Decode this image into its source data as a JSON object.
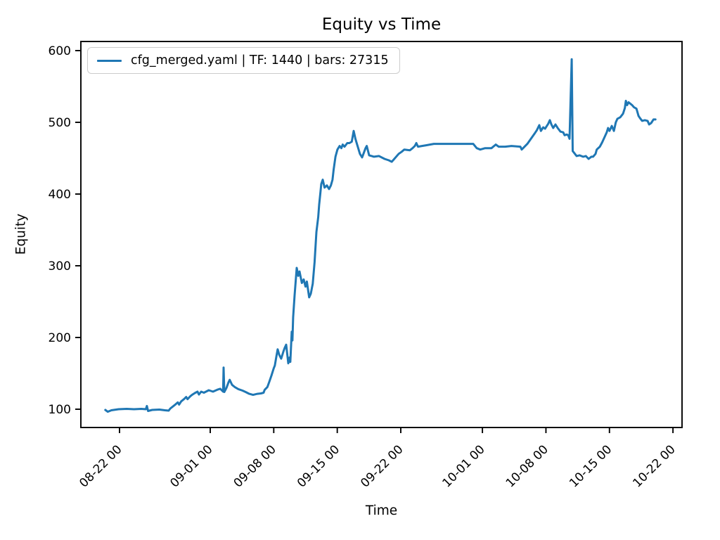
{
  "chart_data": {
    "type": "line",
    "title": "Equity vs Time",
    "xlabel": "Time",
    "ylabel": "Equity",
    "legend_position": "upper left",
    "line_color": "#1f77b4",
    "legend_border_color": "#cccccc",
    "y_ticks": [
      100,
      200,
      300,
      400,
      500,
      600
    ],
    "y_range": [
      74.5,
      612.7
    ],
    "x_tick_labels": [
      "08-22 00",
      "09-01 00",
      "09-08 00",
      "09-15 00",
      "09-22 00",
      "10-01 00",
      "10-08 00",
      "10-15 00",
      "10-22 00"
    ],
    "x_tick_days": [
      2,
      12,
      19,
      26,
      33,
      42,
      49,
      56,
      63
    ],
    "x_days_origin_label": "days since 08-20 00",
    "x_range_days": [
      -2.26,
      64.0
    ],
    "series": [
      {
        "name": "cfg_merged.yaml | TF: 1440 | bars: 27315",
        "points": [
          [
            0.44,
            99
          ],
          [
            0.7,
            96.5
          ],
          [
            1.1,
            98.5
          ],
          [
            1.9,
            100
          ],
          [
            2.8,
            100.5
          ],
          [
            3.6,
            100
          ],
          [
            4.4,
            100.5
          ],
          [
            4.9,
            100
          ],
          [
            5.02,
            104.5
          ],
          [
            5.15,
            97.5
          ],
          [
            5.6,
            99
          ],
          [
            6.4,
            99.5
          ],
          [
            7.0,
            98.5
          ],
          [
            7.42,
            98
          ],
          [
            7.6,
            101
          ],
          [
            7.9,
            104
          ],
          [
            8.2,
            107
          ],
          [
            8.43,
            109.5
          ],
          [
            8.57,
            106.5
          ],
          [
            8.8,
            111
          ],
          [
            9.1,
            114
          ],
          [
            9.35,
            117
          ],
          [
            9.5,
            114
          ],
          [
            9.8,
            118
          ],
          [
            10.05,
            120.5
          ],
          [
            10.3,
            122.5
          ],
          [
            10.6,
            124.5
          ],
          [
            10.75,
            120.5
          ],
          [
            11.0,
            124.5
          ],
          [
            11.3,
            123
          ],
          [
            11.84,
            126.5
          ],
          [
            12.3,
            124.5
          ],
          [
            12.85,
            127.5
          ],
          [
            13.1,
            128.5
          ],
          [
            13.3,
            126
          ],
          [
            13.42,
            124.5
          ],
          [
            13.47,
            158
          ],
          [
            13.55,
            124
          ],
          [
            13.8,
            130
          ],
          [
            14.0,
            137
          ],
          [
            14.15,
            141
          ],
          [
            14.4,
            134
          ],
          [
            14.7,
            131
          ],
          [
            15.1,
            128
          ],
          [
            15.56,
            126
          ],
          [
            15.9,
            124
          ],
          [
            16.3,
            121.5
          ],
          [
            16.72,
            120
          ],
          [
            17.2,
            121.5
          ],
          [
            17.6,
            122
          ],
          [
            17.88,
            123
          ],
          [
            18.0,
            127
          ],
          [
            18.3,
            131
          ],
          [
            18.5,
            138
          ],
          [
            18.75,
            147
          ],
          [
            19.0,
            157
          ],
          [
            19.12,
            161
          ],
          [
            19.27,
            172
          ],
          [
            19.43,
            183.5
          ],
          [
            19.6,
            176
          ],
          [
            19.82,
            170.5
          ],
          [
            20.05,
            180
          ],
          [
            20.21,
            185.5
          ],
          [
            20.37,
            190
          ],
          [
            20.6,
            164
          ],
          [
            20.75,
            172
          ],
          [
            20.83,
            166
          ],
          [
            20.98,
            208
          ],
          [
            21.06,
            196
          ],
          [
            21.14,
            228
          ],
          [
            21.3,
            259
          ],
          [
            21.53,
            297
          ],
          [
            21.7,
            286
          ],
          [
            21.84,
            292
          ],
          [
            22.1,
            276
          ],
          [
            22.3,
            281
          ],
          [
            22.5,
            271
          ],
          [
            22.65,
            278
          ],
          [
            22.9,
            256
          ],
          [
            23.08,
            261
          ],
          [
            23.3,
            275
          ],
          [
            23.5,
            305
          ],
          [
            23.7,
            347
          ],
          [
            23.9,
            368
          ],
          [
            24.0,
            385
          ],
          [
            24.15,
            403
          ],
          [
            24.24,
            414
          ],
          [
            24.4,
            420
          ],
          [
            24.6,
            409
          ],
          [
            24.86,
            412
          ],
          [
            25.1,
            407
          ],
          [
            25.3,
            412
          ],
          [
            25.48,
            420
          ],
          [
            25.6,
            434
          ],
          [
            25.8,
            452
          ],
          [
            26.02,
            462
          ],
          [
            26.26,
            467
          ],
          [
            26.45,
            464
          ],
          [
            26.6,
            469
          ],
          [
            26.8,
            466
          ],
          [
            27.1,
            471
          ],
          [
            27.34,
            471
          ],
          [
            27.6,
            473
          ],
          [
            27.81,
            488
          ],
          [
            28.0,
            477
          ],
          [
            28.19,
            469
          ],
          [
            28.5,
            456
          ],
          [
            28.74,
            451
          ],
          [
            29.12,
            464
          ],
          [
            29.25,
            467
          ],
          [
            29.51,
            454
          ],
          [
            29.8,
            453
          ],
          [
            30.05,
            452
          ],
          [
            30.6,
            453
          ],
          [
            31.22,
            449
          ],
          [
            31.68,
            447
          ],
          [
            32.0,
            445
          ],
          [
            32.22,
            448
          ],
          [
            32.77,
            456
          ],
          [
            33.1,
            459
          ],
          [
            33.39,
            462
          ],
          [
            34.01,
            461
          ],
          [
            34.3,
            464
          ],
          [
            34.55,
            467
          ],
          [
            34.71,
            471
          ],
          [
            34.9,
            466
          ],
          [
            35.33,
            467
          ],
          [
            35.8,
            468
          ],
          [
            36.64,
            470
          ],
          [
            38.0,
            470
          ],
          [
            39.5,
            470
          ],
          [
            40.98,
            470
          ],
          [
            41.37,
            464
          ],
          [
            41.76,
            462
          ],
          [
            42.3,
            464
          ],
          [
            43.0,
            464
          ],
          [
            43.47,
            469
          ],
          [
            43.8,
            466
          ],
          [
            44.5,
            466
          ],
          [
            45.2,
            467
          ],
          [
            46.18,
            466
          ],
          [
            46.33,
            462
          ],
          [
            46.95,
            470
          ],
          [
            47.4,
            478
          ],
          [
            47.73,
            484
          ],
          [
            48.0,
            489
          ],
          [
            48.27,
            496
          ],
          [
            48.45,
            488
          ],
          [
            48.7,
            493
          ],
          [
            48.9,
            491
          ],
          [
            49.05,
            494
          ],
          [
            49.25,
            498
          ],
          [
            49.43,
            503
          ],
          [
            49.6,
            497
          ],
          [
            49.8,
            492
          ],
          [
            50.05,
            497
          ],
          [
            50.3,
            492
          ],
          [
            50.6,
            487
          ],
          [
            50.9,
            486
          ],
          [
            51.06,
            482
          ],
          [
            51.3,
            483
          ],
          [
            51.45,
            482
          ],
          [
            51.6,
            477
          ],
          [
            51.84,
            588
          ],
          [
            51.95,
            460
          ],
          [
            52.07,
            458
          ],
          [
            52.38,
            453
          ],
          [
            52.7,
            454
          ],
          [
            53.1,
            452
          ],
          [
            53.4,
            453
          ],
          [
            53.7,
            449
          ],
          [
            54.0,
            452
          ],
          [
            54.2,
            452
          ],
          [
            54.47,
            456
          ],
          [
            54.6,
            462
          ],
          [
            54.94,
            466
          ],
          [
            55.2,
            472
          ],
          [
            55.48,
            480
          ],
          [
            55.7,
            486
          ],
          [
            55.85,
            492
          ],
          [
            56.0,
            488
          ],
          [
            56.26,
            495
          ],
          [
            56.49,
            488
          ],
          [
            56.7,
            500
          ],
          [
            56.88,
            505
          ],
          [
            57.19,
            507
          ],
          [
            57.5,
            512
          ],
          [
            57.7,
            520
          ],
          [
            57.81,
            530
          ],
          [
            57.95,
            524
          ],
          [
            58.1,
            528
          ],
          [
            58.3,
            526
          ],
          [
            58.5,
            524
          ],
          [
            58.7,
            521
          ],
          [
            58.98,
            519
          ],
          [
            59.2,
            509
          ],
          [
            59.36,
            506
          ],
          [
            59.6,
            502
          ],
          [
            59.9,
            503
          ],
          [
            60.2,
            502
          ],
          [
            60.37,
            497
          ],
          [
            60.6,
            499
          ],
          [
            60.85,
            504
          ],
          [
            61.07,
            504
          ]
        ]
      }
    ]
  }
}
